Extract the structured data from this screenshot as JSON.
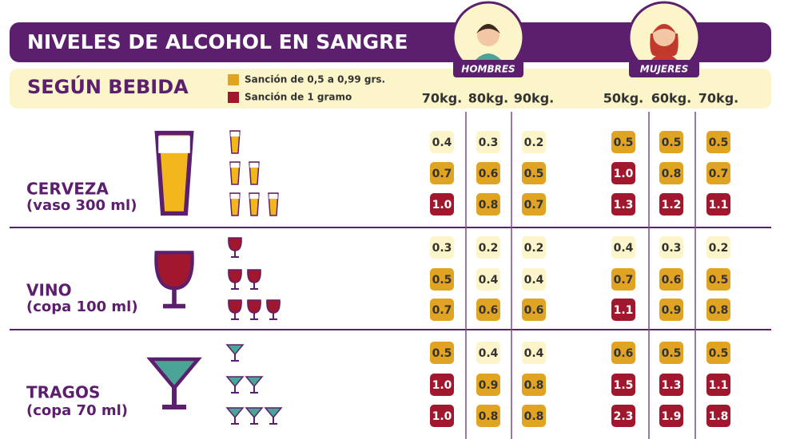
{
  "header": {
    "title": "NIVELES DE ALCOHOL EN SANGRE",
    "subtitle": "SEGÚN BEBIDA"
  },
  "legend": [
    {
      "label": "Sanción de 0,5 a 0,99 grs.",
      "color": "#e1a322"
    },
    {
      "label": "Sanción de 1 gramo",
      "color": "#a1172d"
    }
  ],
  "groups": [
    {
      "label": "HOMBRES",
      "columns": [
        "70kg.",
        "80kg.",
        "90kg."
      ]
    },
    {
      "label": "MUJERES",
      "columns": [
        "50kg.",
        "60kg.",
        "70kg."
      ]
    }
  ],
  "drinks": [
    {
      "name": "CERVEZA",
      "serving": "(vaso 300 ml)",
      "rows": [
        [
          {
            "value": "0.4",
            "color": "#fbf5c9"
          },
          {
            "value": "0.3",
            "color": "#fbf5c9"
          },
          {
            "value": "0.2",
            "color": "#fbf5c9"
          },
          {
            "value": "0.5",
            "color": "#e1a322"
          },
          {
            "value": "0.5",
            "color": "#e1a322"
          },
          {
            "value": "0.5",
            "color": "#e1a322"
          }
        ],
        [
          {
            "value": "0.7",
            "color": "#e1a322"
          },
          {
            "value": "0.6",
            "color": "#e1a322"
          },
          {
            "value": "0.5",
            "color": "#e1a322"
          },
          {
            "value": "1.0",
            "color": "#a1172d"
          },
          {
            "value": "0.8",
            "color": "#e1a322"
          },
          {
            "value": "0.7",
            "color": "#e1a322"
          }
        ],
        [
          {
            "value": "1.0",
            "color": "#a1172d"
          },
          {
            "value": "0.8",
            "color": "#e1a322"
          },
          {
            "value": "0.7",
            "color": "#e1a322"
          },
          {
            "value": "1.3",
            "color": "#a1172d"
          },
          {
            "value": "1.2",
            "color": "#a1172d"
          },
          {
            "value": "1.1",
            "color": "#a1172d"
          }
        ]
      ]
    },
    {
      "name": "VINO",
      "serving": "(copa 100 ml)",
      "rows": [
        [
          {
            "value": "0.3",
            "color": "#fbf5c9"
          },
          {
            "value": "0.2",
            "color": "#fbf5c9"
          },
          {
            "value": "0.2",
            "color": "#fbf5c9"
          },
          {
            "value": "0.4",
            "color": "#fbf5c9"
          },
          {
            "value": "0.3",
            "color": "#fbf5c9"
          },
          {
            "value": "0.2",
            "color": "#fbf5c9"
          }
        ],
        [
          {
            "value": "0.5",
            "color": "#e1a322"
          },
          {
            "value": "0.4",
            "color": "#fbf5c9"
          },
          {
            "value": "0.4",
            "color": "#fbf5c9"
          },
          {
            "value": "0.7",
            "color": "#e1a322"
          },
          {
            "value": "0.6",
            "color": "#e1a322"
          },
          {
            "value": "0.5",
            "color": "#e1a322"
          }
        ],
        [
          {
            "value": "0.7",
            "color": "#e1a322"
          },
          {
            "value": "0.6",
            "color": "#e1a322"
          },
          {
            "value": "0.6",
            "color": "#e1a322"
          },
          {
            "value": "1.1",
            "color": "#a1172d"
          },
          {
            "value": "0.9",
            "color": "#e1a322"
          },
          {
            "value": "0.8",
            "color": "#e1a322"
          }
        ]
      ]
    },
    {
      "name": "TRAGOS",
      "serving": "(copa 70 ml)",
      "rows": [
        [
          {
            "value": "0.5",
            "color": "#e1a322"
          },
          {
            "value": "0.4",
            "color": "#fbf5c9"
          },
          {
            "value": "0.4",
            "color": "#fbf5c9"
          },
          {
            "value": "0.6",
            "color": "#e1a322"
          },
          {
            "value": "0.5",
            "color": "#e1a322"
          },
          {
            "value": "0.5",
            "color": "#e1a322"
          }
        ],
        [
          {
            "value": "1.0",
            "color": "#a1172d"
          },
          {
            "value": "0.9",
            "color": "#e1a322"
          },
          {
            "value": "0.8",
            "color": "#e1a322"
          },
          {
            "value": "1.5",
            "color": "#a1172d"
          },
          {
            "value": "1.3",
            "color": "#a1172d"
          },
          {
            "value": "1.1",
            "color": "#a1172d"
          }
        ],
        [
          {
            "value": "1.0",
            "color": "#a1172d"
          },
          {
            "value": "0.8",
            "color": "#e1a322"
          },
          {
            "value": "0.8",
            "color": "#e1a322"
          },
          {
            "value": "2.3",
            "color": "#a1172d"
          },
          {
            "value": "1.9",
            "color": "#a1172d"
          },
          {
            "value": "1.8",
            "color": "#a1172d"
          }
        ]
      ]
    }
  ]
}
